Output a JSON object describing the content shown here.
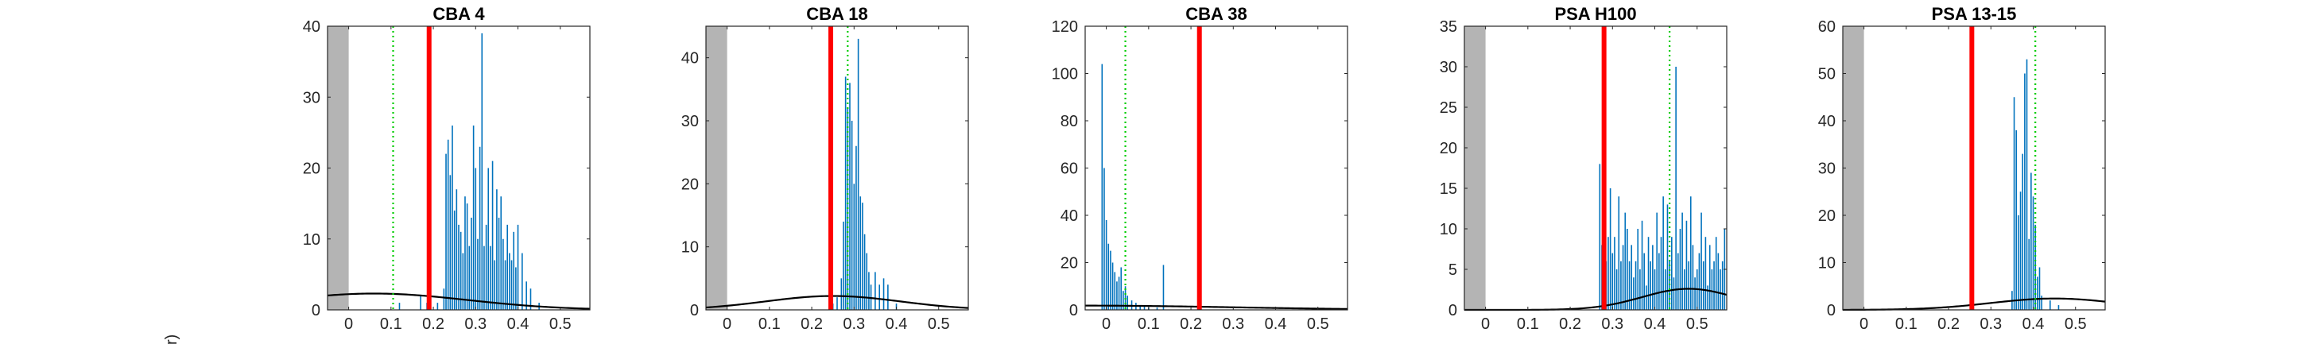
{
  "edge_label": "r)",
  "colors": {
    "histogram": "#0072BD",
    "threshold": "#FF0000",
    "reference": "#00CC00",
    "curve": "#000000",
    "excluded": "#B4B4B4"
  },
  "chart_data": [
    {
      "type": "bar",
      "title": "CBA 4",
      "xlim": [
        -0.05,
        0.57
      ],
      "ylim": [
        0,
        40
      ],
      "xticks": [
        0,
        0.1,
        0.2,
        0.3,
        0.4,
        0.5
      ],
      "yticks": [
        0,
        10,
        20,
        30,
        40
      ],
      "excluded_range": [
        -0.05,
        0.0
      ],
      "threshold_x": 0.19,
      "reference_x": 0.105,
      "curve": {
        "center": 0.06,
        "sigma": 0.22,
        "peak": 2.3
      },
      "histogram": {
        "x": [
          0.12,
          0.17,
          0.185,
          0.21,
          0.225,
          0.23,
          0.235,
          0.24,
          0.245,
          0.25,
          0.255,
          0.26,
          0.265,
          0.27,
          0.275,
          0.28,
          0.285,
          0.29,
          0.295,
          0.3,
          0.305,
          0.31,
          0.315,
          0.32,
          0.325,
          0.33,
          0.335,
          0.34,
          0.345,
          0.35,
          0.355,
          0.36,
          0.365,
          0.37,
          0.375,
          0.38,
          0.385,
          0.39,
          0.395,
          0.4,
          0.41,
          0.42,
          0.43,
          0.45
        ],
        "values": [
          1,
          2,
          1,
          1,
          3,
          22,
          24,
          19,
          26,
          14,
          17,
          12,
          11,
          8,
          16,
          15,
          9,
          13,
          26,
          20,
          10,
          23,
          39,
          9,
          12,
          20,
          9,
          21,
          7,
          17,
          13,
          16,
          10,
          7,
          12,
          8,
          7,
          11,
          6,
          12,
          8,
          4,
          3,
          1
        ]
      }
    },
    {
      "type": "bar",
      "title": "CBA 18",
      "xlim": [
        -0.05,
        0.57
      ],
      "ylim": [
        0,
        45
      ],
      "xticks": [
        0,
        0.1,
        0.2,
        0.3,
        0.4,
        0.5
      ],
      "yticks": [
        0,
        10,
        20,
        30,
        40
      ],
      "excluded_range": [
        -0.05,
        0.0
      ],
      "threshold_x": 0.245,
      "reference_x": 0.285,
      "curve": {
        "center": 0.25,
        "sigma": 0.16,
        "peak": 2.2
      },
      "histogram": {
        "x": [
          0.25,
          0.26,
          0.27,
          0.275,
          0.28,
          0.285,
          0.29,
          0.295,
          0.3,
          0.305,
          0.31,
          0.315,
          0.32,
          0.325,
          0.33,
          0.335,
          0.34,
          0.35,
          0.36,
          0.37,
          0.38,
          0.4
        ],
        "values": [
          1,
          2,
          5,
          14,
          37,
          32,
          36,
          30,
          20,
          26,
          43,
          18,
          17,
          12,
          9,
          6,
          4,
          6,
          4,
          5,
          4,
          1
        ]
      }
    },
    {
      "type": "bar",
      "title": "CBA 38",
      "xlim": [
        -0.05,
        0.57
      ],
      "ylim": [
        0,
        120
      ],
      "xticks": [
        0,
        0.1,
        0.2,
        0.3,
        0.4,
        0.5
      ],
      "yticks": [
        0,
        20,
        40,
        60,
        80,
        100,
        120
      ],
      "excluded_range": null,
      "threshold_x": 0.22,
      "reference_x": 0.045,
      "curve": {
        "center": -0.05,
        "sigma": 0.35,
        "peak": 1.8
      },
      "histogram": {
        "x": [
          -0.01,
          -0.005,
          0.0,
          0.005,
          0.01,
          0.015,
          0.02,
          0.025,
          0.03,
          0.035,
          0.04,
          0.045,
          0.05,
          0.06,
          0.07,
          0.08,
          0.09,
          0.1,
          0.12,
          0.135
        ],
        "values": [
          104,
          60,
          38,
          28,
          25,
          20,
          16,
          12,
          14,
          18,
          8,
          10,
          6,
          4,
          3,
          2,
          2,
          1,
          1,
          19
        ]
      }
    },
    {
      "type": "bar",
      "title": "PSA H100",
      "xlim": [
        -0.05,
        0.57
      ],
      "ylim": [
        0,
        35
      ],
      "xticks": [
        0,
        0.1,
        0.2,
        0.3,
        0.4,
        0.5
      ],
      "yticks": [
        0,
        5,
        10,
        15,
        20,
        25,
        30,
        35
      ],
      "excluded_range": [
        -0.05,
        0.0
      ],
      "threshold_x": 0.28,
      "reference_x": 0.435,
      "curve": {
        "center": 0.48,
        "sigma": 0.11,
        "peak": 2.6
      },
      "histogram": {
        "x": [
          0.27,
          0.275,
          0.28,
          0.285,
          0.29,
          0.295,
          0.3,
          0.305,
          0.31,
          0.315,
          0.32,
          0.325,
          0.33,
          0.335,
          0.34,
          0.345,
          0.35,
          0.355,
          0.36,
          0.365,
          0.37,
          0.375,
          0.38,
          0.385,
          0.39,
          0.395,
          0.4,
          0.405,
          0.41,
          0.415,
          0.42,
          0.425,
          0.43,
          0.435,
          0.44,
          0.445,
          0.45,
          0.455,
          0.46,
          0.465,
          0.47,
          0.475,
          0.48,
          0.485,
          0.49,
          0.495,
          0.5,
          0.505,
          0.51,
          0.515,
          0.52,
          0.525,
          0.53,
          0.535,
          0.54,
          0.545,
          0.55,
          0.555,
          0.56,
          0.565
        ],
        "values": [
          18,
          8,
          12,
          6,
          9,
          15,
          7,
          9,
          5,
          14,
          6,
          8,
          12,
          10,
          6,
          8,
          4,
          6,
          10,
          5,
          11,
          7,
          3,
          9,
          6,
          8,
          5,
          12,
          7,
          9,
          14,
          5,
          13,
          6,
          9,
          4,
          30,
          7,
          10,
          12,
          5,
          11,
          6,
          14,
          8,
          4,
          5,
          7,
          12,
          6,
          9,
          3,
          8,
          5,
          6,
          9,
          7,
          5,
          6,
          10
        ]
      }
    },
    {
      "type": "bar",
      "title": "PSA 13-15",
      "xlim": [
        -0.05,
        0.57
      ],
      "ylim": [
        0,
        60
      ],
      "xticks": [
        0,
        0.1,
        0.2,
        0.3,
        0.4,
        0.5
      ],
      "yticks": [
        0,
        10,
        20,
        30,
        40,
        50,
        60
      ],
      "excluded_range": [
        -0.05,
        0.0
      ],
      "threshold_x": 0.255,
      "reference_x": 0.405,
      "curve": {
        "center": 0.45,
        "sigma": 0.15,
        "peak": 2.4
      },
      "histogram": {
        "x": [
          0.35,
          0.355,
          0.36,
          0.365,
          0.37,
          0.375,
          0.38,
          0.385,
          0.39,
          0.395,
          0.4,
          0.405,
          0.41,
          0.415,
          0.42,
          0.44,
          0.46
        ],
        "values": [
          4,
          45,
          38,
          20,
          25,
          33,
          50,
          53,
          15,
          29,
          24,
          18,
          7,
          9,
          3,
          2,
          1
        ]
      }
    }
  ]
}
